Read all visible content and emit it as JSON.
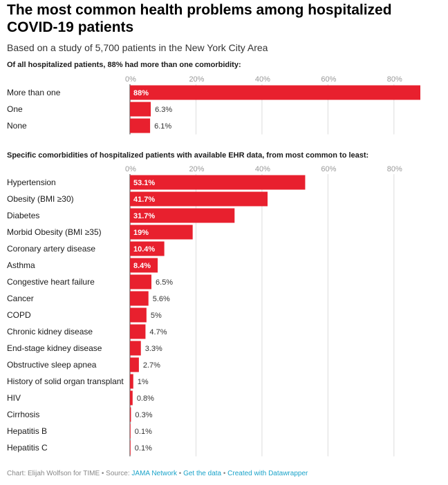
{
  "header": {
    "title": "The most common health problems among hospitalized COVID-19 patients",
    "subtitle": "Based on a study of 5,700 patients in the New York City Area"
  },
  "colors": {
    "bar": "#e8202e",
    "grid": "#dcdcdc",
    "axis": "#999999"
  },
  "chart_data": [
    {
      "type": "bar",
      "orientation": "horizontal",
      "title": "Of all hospitalized patients, 88% had more than one comorbidity:",
      "categories": [
        "More than one",
        "One",
        "None"
      ],
      "values": [
        88,
        6.3,
        6.1
      ],
      "value_labels": [
        "88%",
        "6.3%",
        "6.1%"
      ],
      "xlim": [
        0,
        88
      ],
      "ticks": [
        0,
        20,
        40,
        60,
        80
      ],
      "tick_labels": [
        "0%",
        "20%",
        "40%",
        "60%",
        "80%"
      ],
      "grid": true
    },
    {
      "type": "bar",
      "orientation": "horizontal",
      "title": "Specific comorbidities of hospitalized patients with available EHR data, from most common to least:",
      "categories": [
        "Hypertension",
        "Obesity (BMI ≥30)",
        "Diabetes",
        "Morbid Obesity (BMI ≥35)",
        "Coronary artery disease",
        "Asthma",
        "Congestive heart failure",
        "Cancer",
        "COPD",
        "Chronic kidney disease",
        "End-stage kidney disease",
        "Obstructive sleep apnea",
        "History of solid organ transplant",
        "HIV",
        "Cirrhosis",
        "Hepatitis B",
        "Hepatitis C"
      ],
      "values": [
        53.1,
        41.7,
        31.7,
        19,
        10.4,
        8.4,
        6.5,
        5.6,
        5,
        4.7,
        3.3,
        2.7,
        1,
        0.8,
        0.3,
        0.1,
        0.1
      ],
      "value_labels": [
        "53.1%",
        "41.7%",
        "31.7%",
        "19%",
        "10.4%",
        "8.4%",
        "6.5%",
        "5.6%",
        "5%",
        "4.7%",
        "3.3%",
        "2.7%",
        "1%",
        "0.8%",
        "0.3%",
        "0.1%",
        "0.1%"
      ],
      "xlim": [
        0,
        88
      ],
      "ticks": [
        0,
        20,
        40,
        60,
        80
      ],
      "tick_labels": [
        "0%",
        "20%",
        "40%",
        "60%",
        "80%"
      ],
      "grid": true
    }
  ],
  "footer": {
    "credit": "Chart: Elijah Wolfson for TIME • Source: ",
    "source_link": "JAMA Network",
    "sep1": " • ",
    "data_link": "Get the data",
    "sep2": " • ",
    "tool_link": "Created with Datawrapper"
  }
}
